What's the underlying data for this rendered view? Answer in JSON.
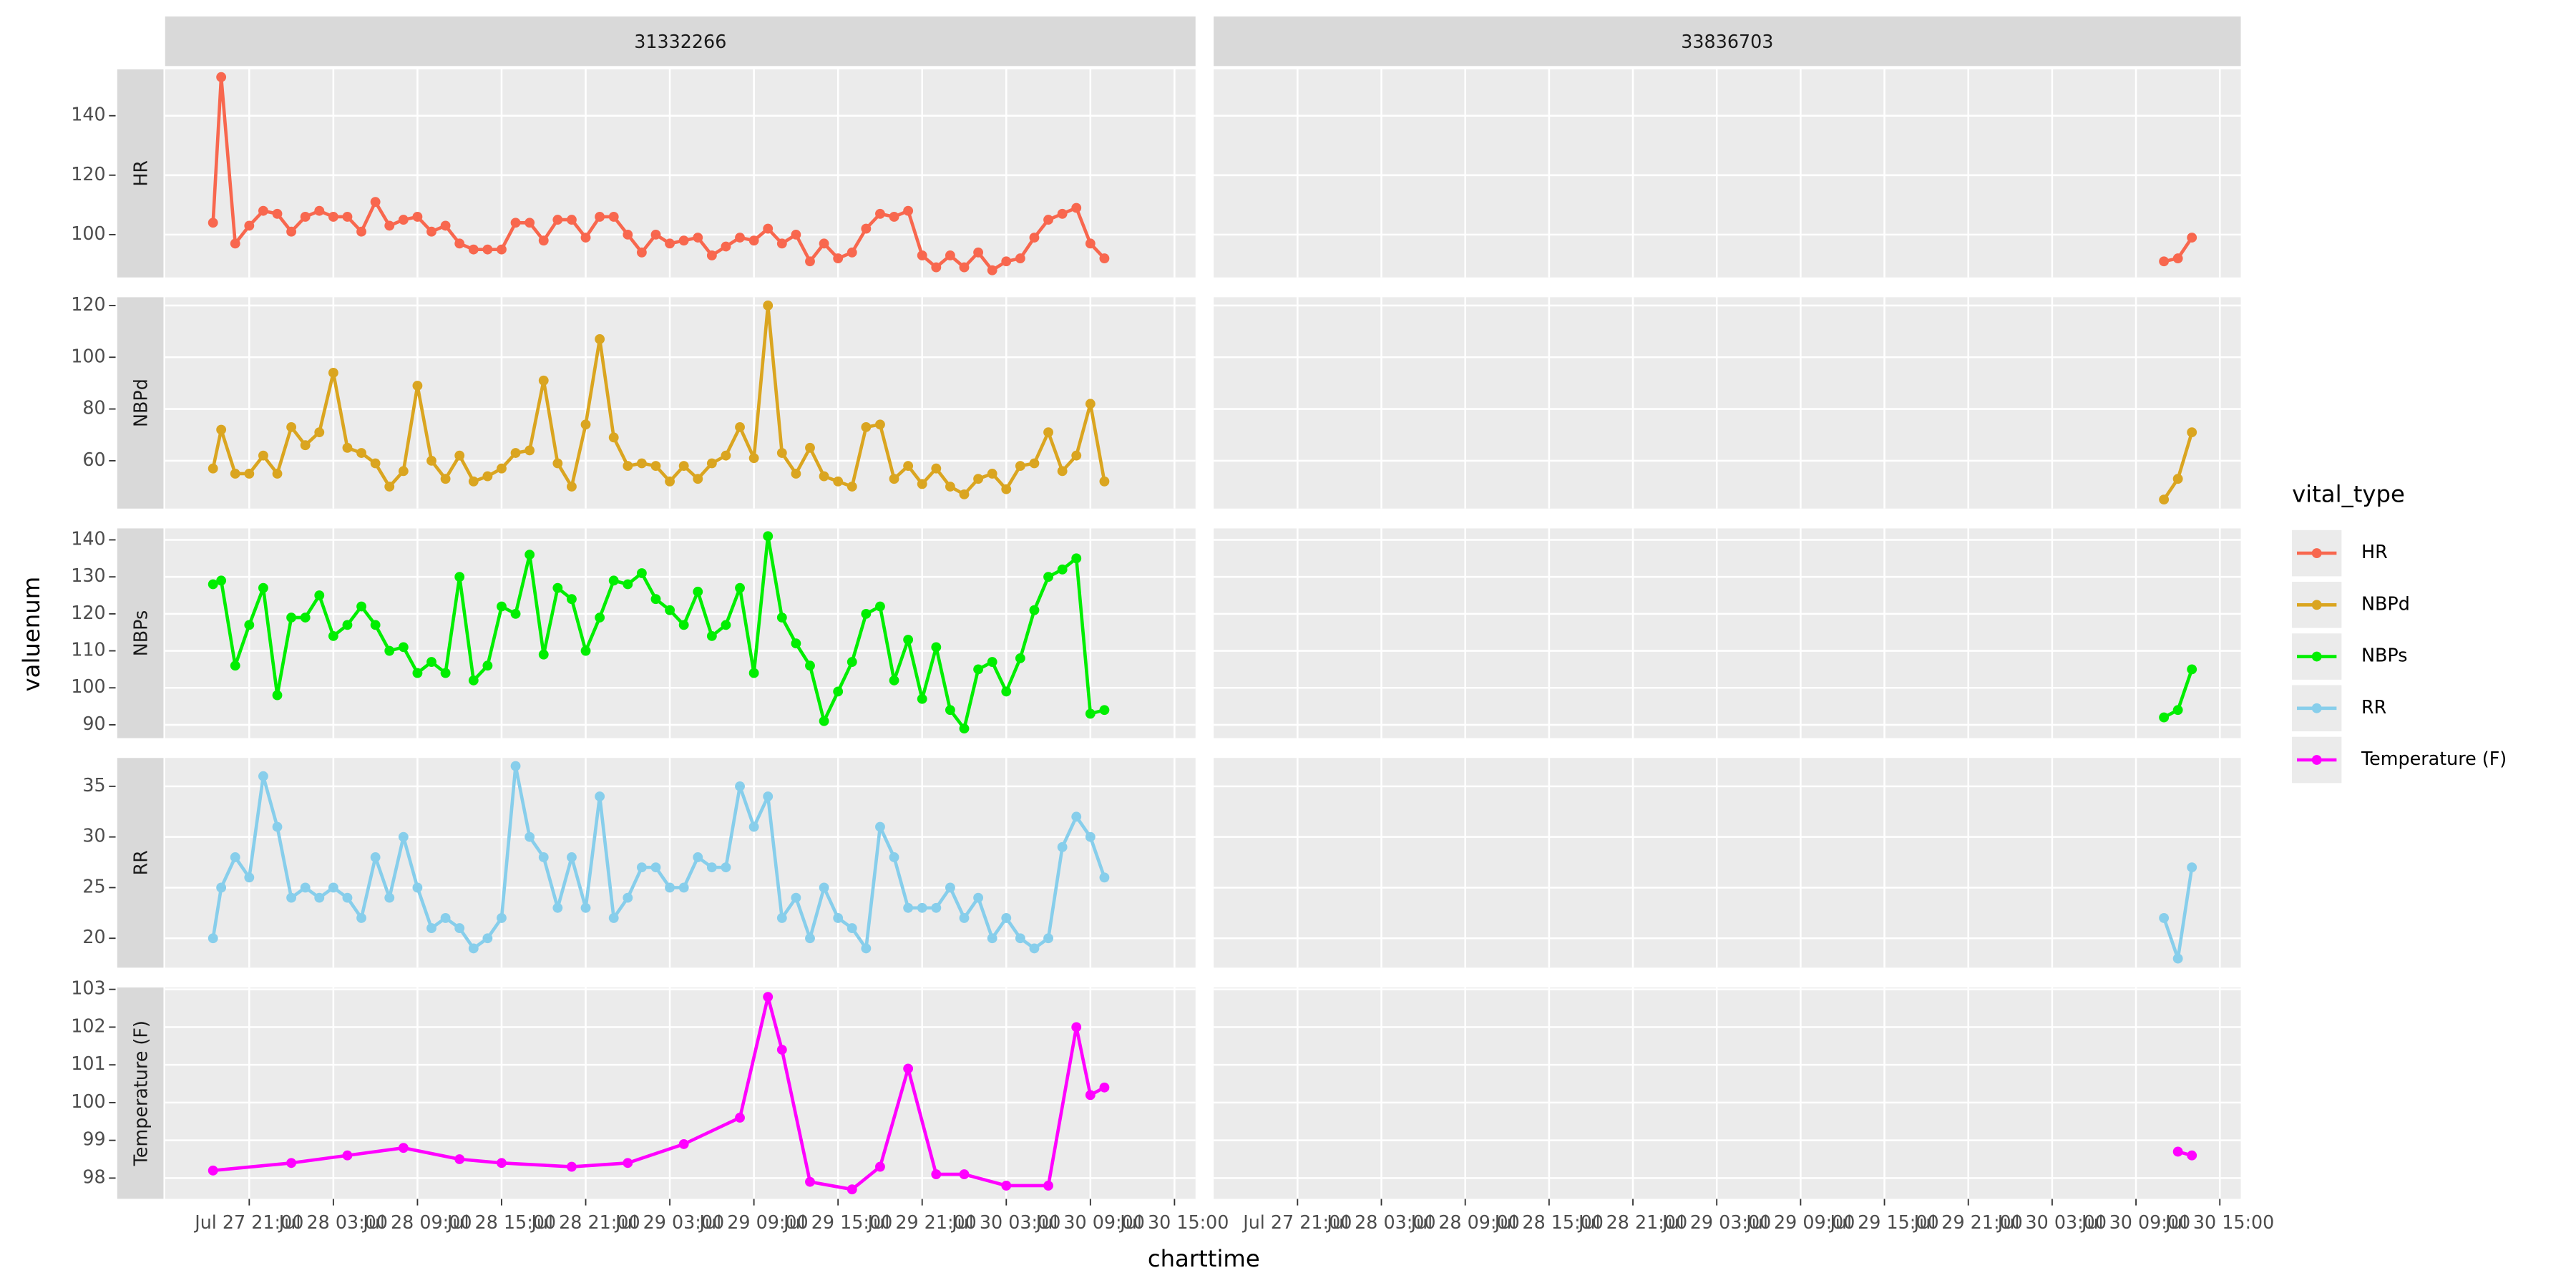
{
  "chart_data": {
    "type": "line",
    "x_label": "charttime",
    "y_label": "valuenum",
    "legend_title": "vital_type",
    "legend_position": "right",
    "grid": true,
    "panels": [
      "31332266",
      "33836703"
    ],
    "xlim": [
      "Jul 27 15:00",
      "Jul 30 16:30"
    ],
    "xticks": [
      "Jul 27 21:00",
      "Jul 28 03:00",
      "Jul 28 09:00",
      "Jul 28 15:00",
      "Jul 28 21:00",
      "Jul 29 03:00",
      "Jul 29 09:00",
      "Jul 29 15:00",
      "Jul 29 21:00",
      "Jul 30 03:00",
      "Jul 30 09:00",
      "Jul 30 15:00"
    ],
    "series": [
      {
        "name": "HR",
        "color": "#f8674e",
        "ylim": [
          85.6,
          155.6
        ],
        "yticks": [
          100,
          120,
          140
        ],
        "data": [
          {
            "x": [
              "Jul 27 18:25",
              "Jul 27 19:00",
              "Jul 27 20:00",
              "Jul 27 21:00",
              "Jul 27 22:00",
              "Jul 27 23:00",
              "Jul 28 00:00",
              "Jul 28 01:00",
              "Jul 28 02:00",
              "Jul 28 03:00",
              "Jul 28 04:00",
              "Jul 28 05:00",
              "Jul 28 06:00",
              "Jul 28 07:00",
              "Jul 28 08:00",
              "Jul 28 09:00",
              "Jul 28 10:00",
              "Jul 28 11:00",
              "Jul 28 12:00",
              "Jul 28 13:00",
              "Jul 28 14:00",
              "Jul 28 15:00",
              "Jul 28 16:00",
              "Jul 28 17:00",
              "Jul 28 18:00",
              "Jul 28 19:00",
              "Jul 28 20:00",
              "Jul 28 21:00",
              "Jul 28 22:00",
              "Jul 28 23:00",
              "Jul 29 00:00",
              "Jul 29 01:00",
              "Jul 29 02:00",
              "Jul 29 03:00",
              "Jul 29 04:00",
              "Jul 29 05:00",
              "Jul 29 06:00",
              "Jul 29 07:00",
              "Jul 29 08:00",
              "Jul 29 09:00",
              "Jul 29 10:00",
              "Jul 29 11:00",
              "Jul 29 12:00",
              "Jul 29 13:00",
              "Jul 29 14:00",
              "Jul 29 15:00",
              "Jul 29 16:00",
              "Jul 29 17:00",
              "Jul 29 18:00",
              "Jul 29 19:00",
              "Jul 29 20:00",
              "Jul 29 21:00",
              "Jul 29 22:00",
              "Jul 29 23:00",
              "Jul 30 00:00",
              "Jul 30 01:00",
              "Jul 30 02:00",
              "Jul 30 03:00",
              "Jul 30 04:00",
              "Jul 30 05:00",
              "Jul 30 06:00",
              "Jul 30 07:00",
              "Jul 30 08:00",
              "Jul 30 09:00",
              "Jul 30 10:00"
            ],
            "values": [
              104,
              153,
              97,
              103,
              108,
              107,
              101,
              106,
              108,
              106,
              106,
              101,
              111,
              103,
              105,
              106,
              101,
              103,
              97,
              95,
              95,
              95,
              104,
              104,
              98,
              105,
              105,
              99,
              106,
              106,
              100,
              94,
              100,
              97,
              98,
              99,
              93,
              96,
              99,
              98,
              102,
              97,
              100,
              91,
              97,
              92,
              94,
              102,
              107,
              106,
              108,
              93,
              89,
              93,
              89,
              94,
              88,
              91,
              92,
              99,
              105,
              107,
              109,
              97,
              92
            ]
          },
          {
            "x": [
              "Jul 30 11:00",
              "Jul 30 12:00",
              "Jul 30 13:00"
            ],
            "values": [
              91,
              92,
              99
            ]
          }
        ]
      },
      {
        "name": "NBPd",
        "color": "#daa520",
        "ylim": [
          41.5,
          123.2
        ],
        "yticks": [
          60,
          80,
          100,
          120
        ],
        "data": [
          {
            "x": [
              "Jul 27 18:25",
              "Jul 27 19:00",
              "Jul 27 20:00",
              "Jul 27 21:00",
              "Jul 27 22:00",
              "Jul 27 23:00",
              "Jul 28 00:00",
              "Jul 28 01:00",
              "Jul 28 02:00",
              "Jul 28 03:00",
              "Jul 28 04:00",
              "Jul 28 05:00",
              "Jul 28 06:00",
              "Jul 28 07:00",
              "Jul 28 08:00",
              "Jul 28 09:00",
              "Jul 28 10:00",
              "Jul 28 11:00",
              "Jul 28 12:00",
              "Jul 28 13:00",
              "Jul 28 14:00",
              "Jul 28 15:00",
              "Jul 28 16:00",
              "Jul 28 17:00",
              "Jul 28 18:00",
              "Jul 28 19:00",
              "Jul 28 20:00",
              "Jul 28 21:00",
              "Jul 28 22:00",
              "Jul 28 23:00",
              "Jul 29 00:00",
              "Jul 29 01:00",
              "Jul 29 02:00",
              "Jul 29 03:00",
              "Jul 29 04:00",
              "Jul 29 05:00",
              "Jul 29 06:00",
              "Jul 29 07:00",
              "Jul 29 08:00",
              "Jul 29 09:00",
              "Jul 29 10:00",
              "Jul 29 11:00",
              "Jul 29 12:00",
              "Jul 29 13:00",
              "Jul 29 14:00",
              "Jul 29 15:00",
              "Jul 29 16:00",
              "Jul 29 17:00",
              "Jul 29 18:00",
              "Jul 29 19:00",
              "Jul 29 20:00",
              "Jul 29 21:00",
              "Jul 29 22:00",
              "Jul 29 23:00",
              "Jul 30 00:00",
              "Jul 30 01:00",
              "Jul 30 02:00",
              "Jul 30 03:00",
              "Jul 30 04:00",
              "Jul 30 05:00",
              "Jul 30 06:00",
              "Jul 30 07:00",
              "Jul 30 08:00",
              "Jul 30 09:00",
              "Jul 30 10:00"
            ],
            "values": [
              57,
              72,
              55,
              55,
              62,
              55,
              73,
              66,
              71,
              94,
              65,
              63,
              59,
              50,
              56,
              89,
              60,
              53,
              62,
              52,
              54,
              57,
              63,
              64,
              91,
              59,
              50,
              74,
              107,
              69,
              58,
              59,
              58,
              52,
              58,
              53,
              59,
              62,
              73,
              61,
              120,
              63,
              55,
              65,
              54,
              52,
              50,
              73,
              74,
              53,
              58,
              51,
              57,
              50,
              47,
              53,
              55,
              49,
              58,
              59,
              71,
              56,
              62,
              82,
              52
            ]
          },
          {
            "x": [
              "Jul 30 11:00",
              "Jul 30 12:00",
              "Jul 30 13:00"
            ],
            "values": [
              45,
              53,
              71
            ]
          }
        ]
      },
      {
        "name": "NBPs",
        "color": "#00ee00",
        "ylim": [
          86.4,
          143.1
        ],
        "yticks": [
          90,
          100,
          110,
          120,
          130,
          140
        ],
        "data": [
          {
            "x": [
              "Jul 27 18:25",
              "Jul 27 19:00",
              "Jul 27 20:00",
              "Jul 27 21:00",
              "Jul 27 22:00",
              "Jul 27 23:00",
              "Jul 28 00:00",
              "Jul 28 01:00",
              "Jul 28 02:00",
              "Jul 28 03:00",
              "Jul 28 04:00",
              "Jul 28 05:00",
              "Jul 28 06:00",
              "Jul 28 07:00",
              "Jul 28 08:00",
              "Jul 28 09:00",
              "Jul 28 10:00",
              "Jul 28 11:00",
              "Jul 28 12:00",
              "Jul 28 13:00",
              "Jul 28 14:00",
              "Jul 28 15:00",
              "Jul 28 16:00",
              "Jul 28 17:00",
              "Jul 28 18:00",
              "Jul 28 19:00",
              "Jul 28 20:00",
              "Jul 28 21:00",
              "Jul 28 22:00",
              "Jul 28 23:00",
              "Jul 29 00:00",
              "Jul 29 01:00",
              "Jul 29 02:00",
              "Jul 29 03:00",
              "Jul 29 04:00",
              "Jul 29 05:00",
              "Jul 29 06:00",
              "Jul 29 07:00",
              "Jul 29 08:00",
              "Jul 29 09:00",
              "Jul 29 10:00",
              "Jul 29 11:00",
              "Jul 29 12:00",
              "Jul 29 13:00",
              "Jul 29 14:00",
              "Jul 29 15:00",
              "Jul 29 16:00",
              "Jul 29 17:00",
              "Jul 29 18:00",
              "Jul 29 19:00",
              "Jul 29 20:00",
              "Jul 29 21:00",
              "Jul 29 22:00",
              "Jul 29 23:00",
              "Jul 30 00:00",
              "Jul 30 01:00",
              "Jul 30 02:00",
              "Jul 30 03:00",
              "Jul 30 04:00",
              "Jul 30 05:00",
              "Jul 30 06:00",
              "Jul 30 07:00",
              "Jul 30 08:00",
              "Jul 30 09:00",
              "Jul 30 10:00"
            ],
            "values": [
              128,
              129,
              106,
              117,
              127,
              98,
              119,
              119,
              125,
              114,
              117,
              122,
              117,
              110,
              111,
              104,
              107,
              104,
              130,
              102,
              106,
              122,
              120,
              136,
              109,
              127,
              124,
              110,
              119,
              129,
              128,
              131,
              124,
              121,
              117,
              126,
              114,
              117,
              127,
              104,
              141,
              119,
              112,
              106,
              91,
              99,
              107,
              120,
              122,
              102,
              113,
              97,
              111,
              94,
              89,
              105,
              107,
              99,
              108,
              121,
              130,
              132,
              135,
              93,
              94
            ]
          },
          {
            "x": [
              "Jul 30 11:00",
              "Jul 30 12:00",
              "Jul 30 13:00"
            ],
            "values": [
              92,
              94,
              105
            ]
          }
        ]
      },
      {
        "name": "RR",
        "color": "#87ceeb",
        "ylim": [
          17.1,
          37.8
        ],
        "yticks": [
          20,
          25,
          30,
          35
        ],
        "data": [
          {
            "x": [
              "Jul 27 18:25",
              "Jul 27 19:00",
              "Jul 27 20:00",
              "Jul 27 21:00",
              "Jul 27 22:00",
              "Jul 27 23:00",
              "Jul 28 00:00",
              "Jul 28 01:00",
              "Jul 28 02:00",
              "Jul 28 03:00",
              "Jul 28 04:00",
              "Jul 28 05:00",
              "Jul 28 06:00",
              "Jul 28 07:00",
              "Jul 28 08:00",
              "Jul 28 09:00",
              "Jul 28 10:00",
              "Jul 28 11:00",
              "Jul 28 12:00",
              "Jul 28 13:00",
              "Jul 28 14:00",
              "Jul 28 15:00",
              "Jul 28 16:00",
              "Jul 28 17:00",
              "Jul 28 18:00",
              "Jul 28 19:00",
              "Jul 28 20:00",
              "Jul 28 21:00",
              "Jul 28 22:00",
              "Jul 28 23:00",
              "Jul 29 00:00",
              "Jul 29 01:00",
              "Jul 29 02:00",
              "Jul 29 03:00",
              "Jul 29 04:00",
              "Jul 29 05:00",
              "Jul 29 06:00",
              "Jul 29 07:00",
              "Jul 29 08:00",
              "Jul 29 09:00",
              "Jul 29 10:00",
              "Jul 29 11:00",
              "Jul 29 12:00",
              "Jul 29 13:00",
              "Jul 29 14:00",
              "Jul 29 15:00",
              "Jul 29 16:00",
              "Jul 29 17:00",
              "Jul 29 18:00",
              "Jul 29 19:00",
              "Jul 29 20:00",
              "Jul 29 21:00",
              "Jul 29 22:00",
              "Jul 29 23:00",
              "Jul 30 00:00",
              "Jul 30 01:00",
              "Jul 30 02:00",
              "Jul 30 03:00",
              "Jul 30 04:00",
              "Jul 30 05:00",
              "Jul 30 06:00",
              "Jul 30 07:00",
              "Jul 30 08:00",
              "Jul 30 09:00",
              "Jul 30 10:00"
            ],
            "values": [
              20,
              25,
              28,
              26,
              36,
              31,
              24,
              25,
              24,
              25,
              24,
              22,
              28,
              24,
              30,
              25,
              21,
              22,
              21,
              19,
              20,
              22,
              37,
              30,
              28,
              23,
              28,
              23,
              34,
              22,
              24,
              27,
              27,
              25,
              25,
              28,
              27,
              27,
              35,
              31,
              34,
              22,
              24,
              20,
              25,
              22,
              21,
              19,
              31,
              28,
              23,
              23,
              23,
              25,
              22,
              24,
              20,
              22,
              20,
              19,
              20,
              29,
              32,
              30,
              26
            ]
          },
          {
            "x": [
              "Jul 30 11:00",
              "Jul 30 12:00",
              "Jul 30 13:00"
            ],
            "values": [
              22,
              18,
              27
            ]
          }
        ]
      },
      {
        "name": "Temperature (F)",
        "color": "#ff00ff",
        "ylim": [
          97.45,
          103.05
        ],
        "yticks": [
          98,
          99,
          100,
          101,
          102,
          103
        ],
        "data": [
          {
            "x": [
              "Jul 27 18:25",
              "Jul 28 00:00",
              "Jul 28 04:00",
              "Jul 28 08:00",
              "Jul 28 12:00",
              "Jul 28 15:00",
              "Jul 28 20:00",
              "Jul 29 00:00",
              "Jul 29 04:00",
              "Jul 29 08:00",
              "Jul 29 10:00",
              "Jul 29 11:00",
              "Jul 29 13:00",
              "Jul 29 16:00",
              "Jul 29 18:00",
              "Jul 29 20:00",
              "Jul 29 22:00",
              "Jul 30 00:00",
              "Jul 30 03:00",
              "Jul 30 06:00",
              "Jul 30 08:00",
              "Jul 30 09:00",
              "Jul 30 10:00"
            ],
            "values": [
              98.2,
              98.4,
              98.6,
              98.8,
              98.5,
              98.4,
              98.3,
              98.4,
              98.9,
              99.6,
              102.8,
              101.4,
              97.9,
              97.7,
              98.3,
              100.9,
              98.1,
              98.1,
              97.8,
              97.8,
              102.0,
              100.2,
              100.4
            ]
          },
          {
            "x": [
              "Jul 30 12:00",
              "Jul 30 13:00"
            ],
            "values": [
              98.7,
              98.6
            ]
          }
        ]
      }
    ]
  }
}
